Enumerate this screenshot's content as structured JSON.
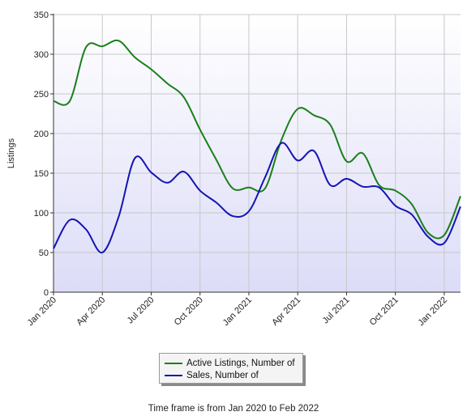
{
  "chart_data": {
    "type": "line",
    "ylabel": "Listings",
    "xlabel": "",
    "ylim": [
      0,
      350
    ],
    "yticks": [
      0,
      50,
      100,
      150,
      200,
      250,
      300,
      350
    ],
    "x_tick_labels": [
      "Jan 2020",
      "Apr 2020",
      "Jul 2020",
      "Oct 2020",
      "Jan 2021",
      "Apr 2021",
      "Jul 2021",
      "Oct 2021",
      "Jan 2022"
    ],
    "x": [
      "Jan 2020",
      "Feb 2020",
      "Mar 2020",
      "Apr 2020",
      "May 2020",
      "Jun 2020",
      "Jul 2020",
      "Aug 2020",
      "Sep 2020",
      "Oct 2020",
      "Nov 2020",
      "Dec 2020",
      "Jan 2021",
      "Feb 2021",
      "Mar 2021",
      "Apr 2021",
      "May 2021",
      "Jun 2021",
      "Jul 2021",
      "Aug 2021",
      "Sep 2021",
      "Oct 2021",
      "Nov 2021",
      "Dec 2021",
      "Jan 2022",
      "Feb 2022"
    ],
    "grid": true,
    "legend_position": "bottom-center",
    "plot_background": [
      "#ffffff",
      "#dcdcf8"
    ],
    "series": [
      {
        "name": "Active Listings, Number of",
        "color": "#1a7f1a",
        "values": [
          241,
          241,
          309,
          310,
          317,
          296,
          281,
          263,
          246,
          205,
          167,
          131,
          132,
          131,
          192,
          231,
          223,
          211,
          165,
          175,
          135,
          128,
          111,
          75,
          72,
          121
        ]
      },
      {
        "name": "Sales, Number of",
        "color": "#1414b4",
        "values": [
          55,
          91,
          79,
          50,
          95,
          169,
          151,
          138,
          152,
          128,
          113,
          96,
          102,
          145,
          188,
          166,
          178,
          135,
          143,
          133,
          132,
          109,
          98,
          70,
          62,
          108
        ]
      }
    ]
  },
  "footer": "Time frame is from Jan 2020 to Feb 2022"
}
